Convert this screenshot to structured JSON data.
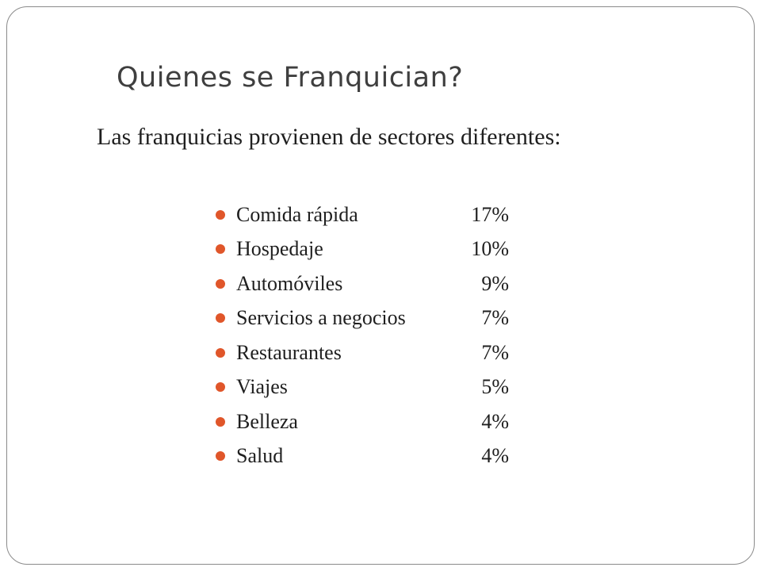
{
  "slide": {
    "title": "Quienes se Franquician?",
    "subtitle": "Las franquicias provienen de sectores diferentes:",
    "accent_color": "#e0562a",
    "items": [
      {
        "label": "Comida rápida",
        "value": "17%"
      },
      {
        "label": "Hospedaje",
        "value": "10%"
      },
      {
        "label": "Automóviles",
        "value": "9%"
      },
      {
        "label": "Servicios a negocios",
        "value": "7%"
      },
      {
        "label": "Restaurantes",
        "value": "7%"
      },
      {
        "label": "Viajes",
        "value": "5%"
      },
      {
        "label": "Belleza",
        "value": "4%"
      },
      {
        "label": "Salud",
        "value": "4%"
      }
    ]
  }
}
